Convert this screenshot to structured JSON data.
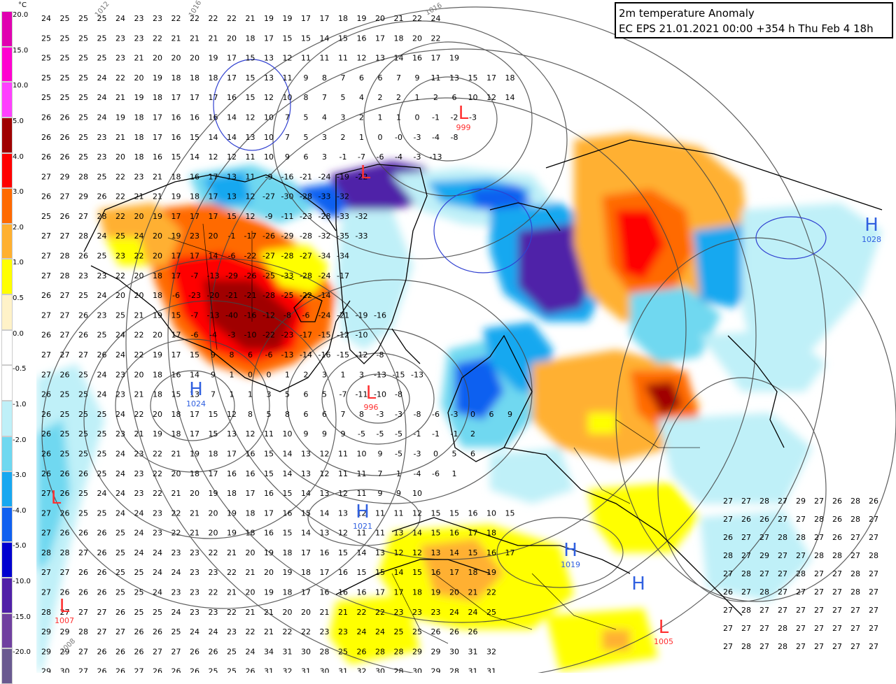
{
  "title": {
    "line1": "2m temperature Anomaly",
    "line2": "EC EPS 21.01.2021 00:00 +354 h Thu Feb 4 18h"
  },
  "legend": {
    "unit": "°C",
    "labels": [
      "20.0",
      "15.0",
      "10.0",
      "5.0",
      "4.0",
      "3.0",
      "2.0",
      "1.0",
      "0.5",
      "0.0",
      "-0.5",
      "-1.0",
      "-2.0",
      "-3.0",
      "-4.0",
      "-5.0",
      "-10.0",
      "-15.0",
      "-20.0"
    ],
    "colors": [
      "#e000b0",
      "#ff00d0",
      "#ff40ff",
      "#a00000",
      "#ff0000",
      "#ff6a00",
      "#ffb030",
      "#ffff00",
      "#fff2c8",
      "#ffffff",
      "#ffffff",
      "#bff0f8",
      "#6fd8f0",
      "#18a8f0",
      "#1060f0",
      "#0000d0",
      "#5020a8",
      "#7040a0",
      "#6a5a90"
    ]
  },
  "pressure_centers": [
    {
      "type": "L",
      "value": "",
      "color": "#ff3030"
    },
    {
      "type": "L",
      "value": "999",
      "color": "#ff3030"
    },
    {
      "type": "L",
      "value": "996",
      "color": "#ff3030"
    },
    {
      "type": "L",
      "value": "",
      "color": "#ff3030"
    },
    {
      "type": "L",
      "value": "1007",
      "color": "#ff3030"
    },
    {
      "type": "L",
      "value": "1005",
      "color": "#ff3030"
    },
    {
      "type": "H",
      "value": "1024",
      "color": "#3060e0"
    },
    {
      "type": "H",
      "value": "1021",
      "color": "#3060e0"
    },
    {
      "type": "H",
      "value": "1019",
      "color": "#3060e0"
    },
    {
      "type": "H",
      "value": "",
      "color": "#3060e0"
    },
    {
      "type": "H",
      "value": "1028",
      "color": "#3060e0"
    }
  ],
  "isobar_labels": [
    "1016",
    "1012",
    "1008",
    "1016"
  ],
  "number_rows": [
    "24 25 25 25 24 23 23 22 22 22 22 21 19 19 17 17 18 19 20 21 22 24",
    "25 25 25 25 23 23 22 21 21 21 20 18 17 15 15 14 15 16 17 18 20 22",
    "25 25 25 25 23 21 20 20 20 19 17 15 13 12 11 11 11 12 13 14 16 17 19",
    "25 25 25 24 22 20 19 18 18 18 17 15 13 11 9 8 7 6 6 7 9 11 13 15 17 18",
    "25 25 25 24 21 19 18 17 17 17 16 15 12 10 8 7 5 4 2 2 1 2 6 10 12 14",
    "26 26 25 24 19 18 17 16 16 16 14 12 10 7 5 4 3 2 1 1 0 -1 -2 -3",
    "26 26 25 23 21 18 17 16 15 14 14 13 10 7 5 3 2 1 0 -0 -3 -4 -8",
    "26 26 25 23 20 18 16 15 14 12 12 11 10 9 6 3 -1 -7 -6 -4 -3 -13",
    "27 29 28 25 22 23 21 18 16 17 13 11 -9 -16 -21 -24 -19 -22",
    "26 27 29 26 22 21 21 19 18 17 13 12 -27 -30 -28 -33 -32",
    "25 26 27 28 22 20 19 17 17 17 15 12 -9 -11 -23 -28 -33 -32",
    "27 27 28 24 25 24 20 19 23 20 -1 -17 -26 -29 -28 -32 -35 -33",
    "27 28 26 25 23 22 20 17 17 14 -6 -22 -27 -28 -27 -34 -34",
    "27 28 23 23 22 20 18 17 -7 -13 -29 -26 -25 -33 -28 -24 -17",
    "26 27 25 24 20 20 18 -6 -23 -20 -21 -21 -28 -25 -22 -14",
    "27 27 26 23 25 21 19 15 -7 -13 -40 -16 -12 -8 -6 -24 -21 -19 -16",
    "26 27 26 25 24 22 20 17 -6 -4 -3 -10 -22 -23 -17 -15 -12 -10",
    "27 27 27 26 24 22 19 17 15 9 8 6 -6 -13 -14 -16 -15 -12 -8",
    "27 26 25 24 23 20 18 16 14 9 1 0 0 1 2 3 1 3 -13 -15 -13",
    "26 25 25 24 23 21 18 15 13 7 1 1 3 5 6 5 -7 -11 -10 -8",
    "26 25 25 25 24 22 20 18 17 15 12 8 5 8 6 6 7 8 -3 -3 -8 -6 -3 0 6 9",
    "26 25 25 25 23 21 19 18 17 15 13 12 11 10 9 9 9 -5 -5 -5 -1 -1 -1 2",
    "26 25 25 25 24 23 22 21 19 18 17 16 15 14 13 12 11 10 9 -5 -3 0 5 6",
    "26 26 26 25 24 23 22 20 18 17 16 16 15 14 13 12 11 11 7 1 -4 -6 1",
    "27 26 25 24 24 23 22 21 20 19 18 17 16 15 14 13 12 11 9 9 10",
    "27 26 25 25 24 24 23 22 21 20 19 18 17 16 15 14 13 12 11 11 12 15 15 16 10 15",
    "27 26 26 26 25 24 23 22 21 20 19 18 16 15 14 13 12 11 11 13 14 15 16 17 18",
    "28 28 27 26 25 24 24 23 23 22 21 20 19 18 17 16 15 14 13 12 12 13 14 15 16 17",
    "27 27 26 26 25 25 24 24 23 23 22 21 20 19 18 17 16 15 15 14 15 16 17 18 19",
    "27 26 26 26 25 25 24 23 23 22 21 20 19 18 17 16 16 16 17 17 18 19 20 21 22",
    "28 27 27 27 26 25 25 24 23 23 22 21 21 20 20 21 21 22 22 23 23 23 24 24 25",
    "29 29 28 27 27 26 26 25 24 24 23 22 21 22 22 23 23 24 24 25 25 26 26 26",
    "29 29 27 26 26 26 27 27 26 26 25 24 34 31 30 28 25 26 28 28 29 29 30 31 32",
    "29 30 27 26 26 27 26 26 26 25 25 26 31 32 31 30 31 32 30 28 30 29 28 31 31"
  ],
  "right_rows": [
    "27 27 28 27 29 27 26 28 26",
    "27 26 26 27 27 28 26 28 27",
    "26 27 27 28 28 27 26 27 27",
    "28 27 29 27 27 28 28 27 28",
    "27 28 27 27 28 27 27 28 27",
    "26 27 28 27 27 27 27 28 27",
    "27 28 27 27 27 27 27 27 27",
    "27 27 27 28 27 27 27 27 27",
    "27 28 27 28 27 27 27 27 27"
  ]
}
